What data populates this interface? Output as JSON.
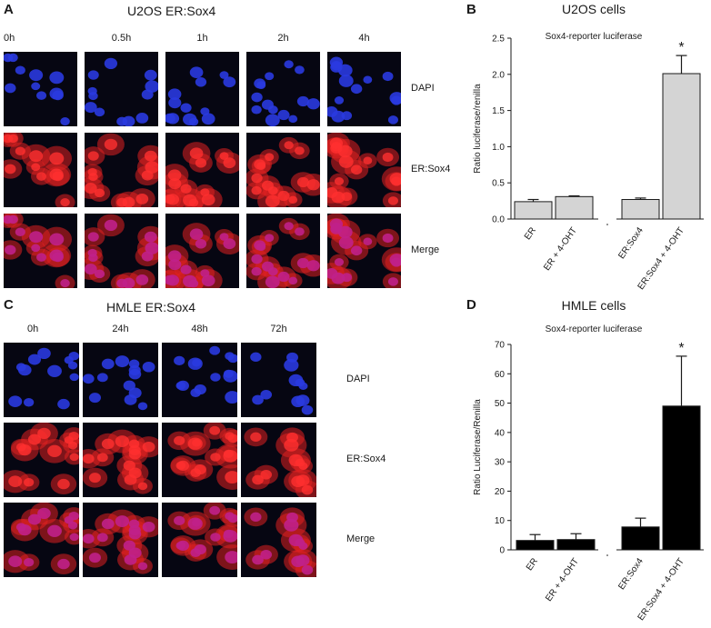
{
  "panel_a": {
    "letter": "A",
    "title": "U2OS ER:Sox4",
    "columns": [
      "0h",
      "0.5h",
      "1h",
      "2h",
      "4h"
    ],
    "rows": [
      "DAPI",
      "ER:Sox4",
      "Merge"
    ]
  },
  "panel_c": {
    "letter": "C",
    "title": "HMLE ER:Sox4",
    "columns": [
      "0h",
      "24h",
      "48h",
      "72h"
    ],
    "rows": [
      "DAPI",
      "ER:Sox4",
      "Merge"
    ]
  },
  "colors": {
    "dapi": "#2a3ae0",
    "sox4": "#e02020",
    "merge": "#c0208a",
    "bar_gray": "#d4d4d4",
    "bar_black": "#000000"
  },
  "chart_data": [
    {
      "panel": "B",
      "type": "bar",
      "title": "U2OS cells",
      "subtitle": "Sox4-reporter luciferase",
      "ylabel": "Ratio luciferase/renilla",
      "xlabel": "",
      "categories": [
        "ER",
        "ER + 4-OHT",
        "ER:Sox4",
        "ER:Sox4 + 4-OHT"
      ],
      "values": [
        0.24,
        0.31,
        0.27,
        2.01
      ],
      "errors": [
        0.03,
        0.01,
        0.02,
        0.25
      ],
      "ylim": [
        0,
        2.5
      ],
      "yticks": [
        "0.0",
        "0.5",
        "1.0",
        "1.5",
        "2.0",
        "2.5"
      ],
      "annotation": "*",
      "bar_color": "#d4d4d4"
    },
    {
      "panel": "D",
      "type": "bar",
      "title": "HMLE cells",
      "subtitle": "Sox4-reporter luciferase",
      "ylabel": "Ratio Luciferase/Renilla",
      "xlabel": "",
      "categories": [
        "ER",
        "ER + 4-OHT",
        "ER:Sox4",
        "ER:Sox4 + 4-OHT"
      ],
      "values": [
        3.2,
        3.5,
        7.8,
        49
      ],
      "errors": [
        2,
        2,
        3,
        17
      ],
      "ylim": [
        0,
        70
      ],
      "yticks": [
        "0",
        "10",
        "20",
        "30",
        "40",
        "50",
        "60",
        "70"
      ],
      "annotation": "*",
      "bar_color": "#000000"
    }
  ]
}
